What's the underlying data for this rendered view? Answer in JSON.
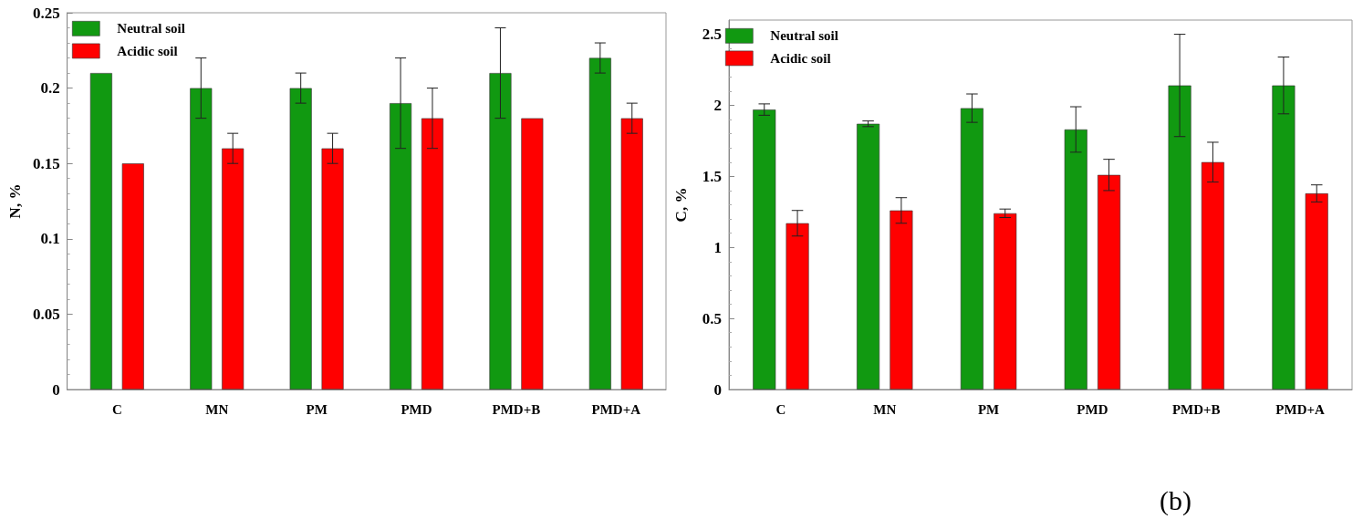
{
  "chart_data": [
    {
      "type": "bar",
      "ylabel": "N, %",
      "categories": [
        "C",
        "MN",
        "PM",
        "PMD",
        "PMD+B",
        "PMD+A"
      ],
      "ylim": [
        0,
        0.25
      ],
      "yticks": [
        0,
        0.05,
        0.1,
        0.15,
        0.2,
        0.25
      ],
      "grid": false,
      "legend": "top left",
      "series": [
        {
          "name": "Neutral soil",
          "color": "#119911",
          "values": [
            0.21,
            0.2,
            0.2,
            0.19,
            0.21,
            0.22
          ],
          "errors": [
            null,
            0.02,
            0.01,
            0.03,
            0.03,
            0.01
          ]
        },
        {
          "name": "Acidic soil",
          "color": "#ff0000",
          "values": [
            0.15,
            0.16,
            0.16,
            0.18,
            0.18,
            0.18
          ],
          "errors": [
            null,
            0.01,
            0.01,
            0.02,
            null,
            0.01
          ]
        }
      ]
    },
    {
      "type": "bar",
      "ylabel": "C, %",
      "categories": [
        "C",
        "MN",
        "PM",
        "PMD",
        "PMD+B",
        "PMD+A"
      ],
      "ylim": [
        0,
        2.6
      ],
      "yticks": [
        0,
        0.5,
        1,
        1.5,
        2,
        2.5
      ],
      "grid": false,
      "legend": "top left",
      "annotations": [
        "(b)"
      ],
      "series": [
        {
          "name": "Neutral soil",
          "color": "#119911",
          "values": [
            1.97,
            1.87,
            1.98,
            1.83,
            2.14,
            2.14
          ],
          "errors": [
            0.04,
            0.02,
            0.1,
            0.16,
            0.36,
            0.2
          ]
        },
        {
          "name": "Acidic soil",
          "color": "#ff0000",
          "values": [
            1.17,
            1.26,
            1.24,
            1.51,
            1.6,
            1.38
          ],
          "errors": [
            0.09,
            0.09,
            0.03,
            0.11,
            0.14,
            0.06
          ]
        }
      ]
    }
  ]
}
